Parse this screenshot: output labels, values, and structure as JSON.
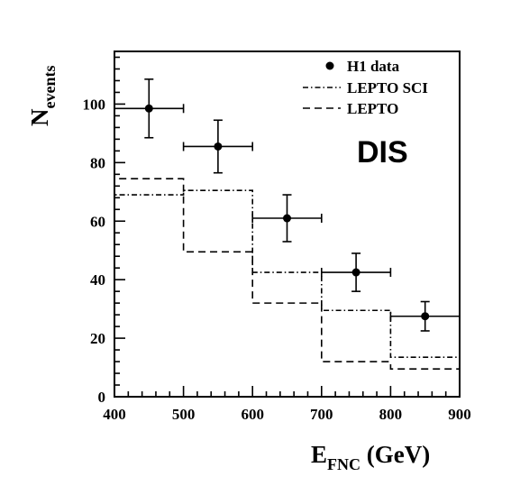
{
  "chart_data": {
    "type": "histogram",
    "xlabel": "E",
    "xlabel_sub": "FNC",
    "xlabel_unit": " (GeV)",
    "ylabel": "N",
    "ylabel_sub": "events",
    "xlim": [
      400,
      900
    ],
    "ylim": [
      0,
      118
    ],
    "xticks": [
      400,
      500,
      600,
      700,
      800,
      900
    ],
    "yticks": [
      0,
      20,
      40,
      60,
      80,
      100
    ],
    "bin_edges": [
      400,
      500,
      600,
      700,
      800,
      900
    ],
    "annotation": "DIS",
    "legend_position": "top-right",
    "series": [
      {
        "name": "H1 data",
        "style": "points-with-errors",
        "x": [
          450,
          550,
          650,
          750,
          850
        ],
        "x_err": [
          50,
          50,
          50,
          50,
          50
        ],
        "y": [
          98.5,
          85.5,
          61,
          42.5,
          27.5
        ],
        "y_err": [
          10,
          9,
          8,
          6.5,
          5
        ]
      },
      {
        "name": "LEPTO SCI",
        "style": "dash-dot",
        "values": [
          69,
          70.5,
          42.5,
          29.5,
          13.5
        ]
      },
      {
        "name": "LEPTO",
        "style": "dashed",
        "values": [
          74.5,
          49.5,
          32,
          12,
          9.5
        ]
      }
    ]
  }
}
